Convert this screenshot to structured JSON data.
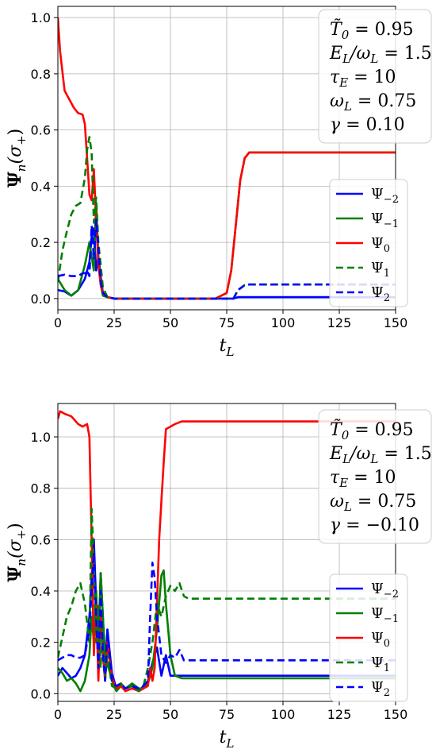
{
  "chart_data": [
    {
      "type": "line",
      "title": "",
      "xlabel": "t_L",
      "ylabel": "Ψ_n(σ+)",
      "xlim": [
        0,
        150
      ],
      "ylim": [
        -0.04,
        1.04
      ],
      "xticks": [
        "0",
        "25",
        "50",
        "75",
        "100",
        "125",
        "150"
      ],
      "yticks": [
        "0.0",
        "0.2",
        "0.4",
        "0.6",
        "0.8",
        "1.0"
      ],
      "grid": true,
      "legend_position": "center-right",
      "params": [
        "T̃0 = 0.95",
        "EL/ωL = 1.5",
        "τE = 10",
        "ωL = 0.75",
        "γ = 0.10"
      ],
      "series": [
        {
          "name": "Ψ−2",
          "color": "#0000ff",
          "dash": "solid",
          "x": [
            0,
            3,
            6,
            9,
            12,
            14,
            15,
            16,
            17,
            18,
            19,
            20,
            22,
            25,
            50,
            75,
            78,
            80,
            85,
            100,
            150
          ],
          "y": [
            0.03,
            0.025,
            0.01,
            0.03,
            0.07,
            0.13,
            0.22,
            0.25,
            0.1,
            0.15,
            0.08,
            0.02,
            0.005,
            0.0,
            0.0,
            0.0,
            0.0,
            0.005,
            0.005,
            0.005,
            0.005
          ]
        },
        {
          "name": "Ψ−1",
          "color": "#008000",
          "dash": "solid",
          "x": [
            0,
            3,
            6,
            9,
            12,
            14,
            15,
            16,
            17,
            18,
            19,
            20,
            22,
            25,
            50,
            70,
            75,
            77,
            79,
            81,
            83,
            85,
            90,
            150
          ],
          "y": [
            0.07,
            0.03,
            0.01,
            0.03,
            0.12,
            0.2,
            0.15,
            0.1,
            0.34,
            0.15,
            0.05,
            0.01,
            0.005,
            0.0,
            0.0,
            0.0,
            0.02,
            0.1,
            0.26,
            0.42,
            0.5,
            0.52,
            0.52,
            0.52
          ]
        },
        {
          "name": "Ψ0",
          "color": "#ff0000",
          "dash": "solid",
          "x": [
            0,
            1,
            3,
            5,
            7,
            9,
            11,
            12,
            13,
            14,
            15,
            16,
            17,
            18,
            19,
            20,
            22,
            25,
            50,
            70,
            75,
            77,
            79,
            81,
            83,
            85,
            90,
            150
          ],
          "y": [
            1.0,
            0.88,
            0.74,
            0.71,
            0.68,
            0.66,
            0.655,
            0.62,
            0.5,
            0.37,
            0.35,
            0.46,
            0.28,
            0.12,
            0.05,
            0.02,
            0.005,
            0.0,
            0.0,
            0.0,
            0.02,
            0.1,
            0.26,
            0.42,
            0.5,
            0.52,
            0.52,
            0.52
          ]
        },
        {
          "name": "Ψ1",
          "color": "#008000",
          "dash": "dashed",
          "x": [
            0,
            2,
            4,
            6,
            8,
            10,
            12,
            13,
            14,
            15,
            16,
            17,
            18,
            19,
            20,
            22,
            25,
            50,
            75,
            78,
            80,
            83,
            85,
            150
          ],
          "y": [
            0.06,
            0.17,
            0.24,
            0.3,
            0.33,
            0.34,
            0.43,
            0.53,
            0.575,
            0.52,
            0.27,
            0.36,
            0.2,
            0.12,
            0.04,
            0.005,
            0.0,
            0.0,
            0.0,
            0.0,
            0.03,
            0.048,
            0.05,
            0.05
          ]
        },
        {
          "name": "Ψ2",
          "color": "#0000ff",
          "dash": "dashed",
          "x": [
            0,
            3,
            6,
            9,
            11,
            12,
            13,
            14,
            15,
            16,
            17,
            18,
            19,
            20,
            22,
            25,
            50,
            75,
            78,
            80,
            83,
            85,
            150
          ],
          "y": [
            0.08,
            0.085,
            0.08,
            0.08,
            0.09,
            0.09,
            0.1,
            0.08,
            0.26,
            0.14,
            0.28,
            0.18,
            0.06,
            0.02,
            0.005,
            0.0,
            0.0,
            0.0,
            0.0,
            0.03,
            0.048,
            0.05,
            0.05
          ]
        }
      ]
    },
    {
      "type": "line",
      "title": "",
      "xlabel": "t_L",
      "ylabel": "Ψ_n(σ+)",
      "xlim": [
        0,
        150
      ],
      "ylim": [
        -0.03,
        1.13
      ],
      "xticks": [
        "0",
        "25",
        "50",
        "75",
        "100",
        "125",
        "150"
      ],
      "yticks": [
        "0.0",
        "0.2",
        "0.4",
        "0.6",
        "0.8",
        "1.0"
      ],
      "grid": true,
      "legend_position": "center-right",
      "params": [
        "T̃0 = 0.95",
        "EL/ωL = 1.5",
        "τE = 10",
        "ωL = 0.75",
        "γ = −0.10"
      ],
      "series": [
        {
          "name": "Ψ−2",
          "color": "#0000ff",
          "dash": "solid",
          "x": [
            0,
            2,
            4,
            6,
            8,
            10,
            12,
            14,
            15,
            16,
            17,
            18,
            19,
            20,
            21,
            22,
            24,
            26,
            28,
            30,
            33,
            36,
            38,
            40,
            42,
            44,
            46,
            48,
            50,
            55,
            60,
            150
          ],
          "y": [
            0.07,
            0.1,
            0.08,
            0.06,
            0.07,
            0.1,
            0.15,
            0.3,
            0.45,
            0.6,
            0.35,
            0.12,
            0.47,
            0.3,
            0.1,
            0.25,
            0.08,
            0.02,
            0.04,
            0.02,
            0.03,
            0.01,
            0.03,
            0.05,
            0.12,
            0.18,
            0.07,
            0.15,
            0.07,
            0.07,
            0.07,
            0.07
          ]
        },
        {
          "name": "Ψ−1",
          "color": "#008000",
          "dash": "solid",
          "x": [
            0,
            2,
            4,
            6,
            8,
            10,
            12,
            14,
            15,
            16,
            17,
            18,
            19,
            20,
            21,
            22,
            24,
            26,
            28,
            30,
            33,
            36,
            38,
            40,
            42,
            44,
            46,
            47,
            48,
            50,
            52,
            55,
            60,
            150
          ],
          "y": [
            0.1,
            0.08,
            0.05,
            0.06,
            0.04,
            0.01,
            0.05,
            0.15,
            0.3,
            0.2,
            0.4,
            0.2,
            0.47,
            0.3,
            0.15,
            0.12,
            0.05,
            0.01,
            0.03,
            0.02,
            0.04,
            0.02,
            0.02,
            0.04,
            0.1,
            0.25,
            0.46,
            0.48,
            0.35,
            0.15,
            0.07,
            0.06,
            0.06,
            0.06
          ]
        },
        {
          "name": "Ψ0",
          "color": "#ff0000",
          "dash": "solid",
          "x": [
            0,
            1,
            3,
            6,
            9,
            11,
            13,
            14,
            15,
            16,
            17,
            18,
            19,
            20,
            21,
            22,
            24,
            26,
            28,
            30,
            33,
            36,
            38,
            40,
            41,
            42,
            43,
            44,
            45,
            46,
            47,
            48,
            50,
            52,
            55,
            60,
            150
          ],
          "y": [
            1.07,
            1.1,
            1.09,
            1.08,
            1.05,
            1.04,
            1.05,
            1.0,
            0.6,
            0.15,
            0.35,
            0.05,
            0.3,
            0.15,
            0.05,
            0.2,
            0.06,
            0.02,
            0.03,
            0.01,
            0.02,
            0.01,
            0.02,
            0.03,
            0.1,
            0.05,
            0.1,
            0.35,
            0.6,
            0.75,
            0.9,
            1.03,
            1.04,
            1.05,
            1.06,
            1.06,
            1.06
          ]
        },
        {
          "name": "Ψ1",
          "color": "#008000",
          "dash": "dashed",
          "x": [
            0,
            2,
            4,
            6,
            8,
            10,
            12,
            14,
            15,
            16,
            17,
            18,
            19,
            20,
            21,
            22,
            24,
            26,
            28,
            30,
            33,
            36,
            38,
            40,
            42,
            44,
            46,
            48,
            50,
            52,
            54,
            56,
            58,
            60,
            150
          ],
          "y": [
            0.14,
            0.22,
            0.3,
            0.34,
            0.4,
            0.43,
            0.35,
            0.2,
            0.72,
            0.5,
            0.2,
            0.35,
            0.1,
            0.28,
            0.05,
            0.15,
            0.03,
            0.02,
            0.04,
            0.02,
            0.03,
            0.01,
            0.03,
            0.1,
            0.2,
            0.35,
            0.3,
            0.38,
            0.42,
            0.4,
            0.43,
            0.38,
            0.37,
            0.37,
            0.37
          ]
        },
        {
          "name": "Ψ2",
          "color": "#0000ff",
          "dash": "dashed",
          "x": [
            0,
            2,
            4,
            6,
            8,
            10,
            12,
            14,
            15,
            16,
            17,
            18,
            19,
            20,
            21,
            22,
            24,
            26,
            28,
            30,
            33,
            36,
            38,
            40,
            41,
            42,
            43,
            44,
            46,
            48,
            50,
            52,
            54,
            56,
            60,
            150
          ],
          "y": [
            0.13,
            0.14,
            0.15,
            0.15,
            0.14,
            0.14,
            0.15,
            0.25,
            0.4,
            0.55,
            0.3,
            0.1,
            0.4,
            0.15,
            0.05,
            0.25,
            0.05,
            0.03,
            0.04,
            0.02,
            0.03,
            0.02,
            0.03,
            0.05,
            0.3,
            0.51,
            0.45,
            0.3,
            0.15,
            0.12,
            0.15,
            0.14,
            0.17,
            0.13,
            0.13,
            0.13
          ]
        }
      ]
    }
  ]
}
